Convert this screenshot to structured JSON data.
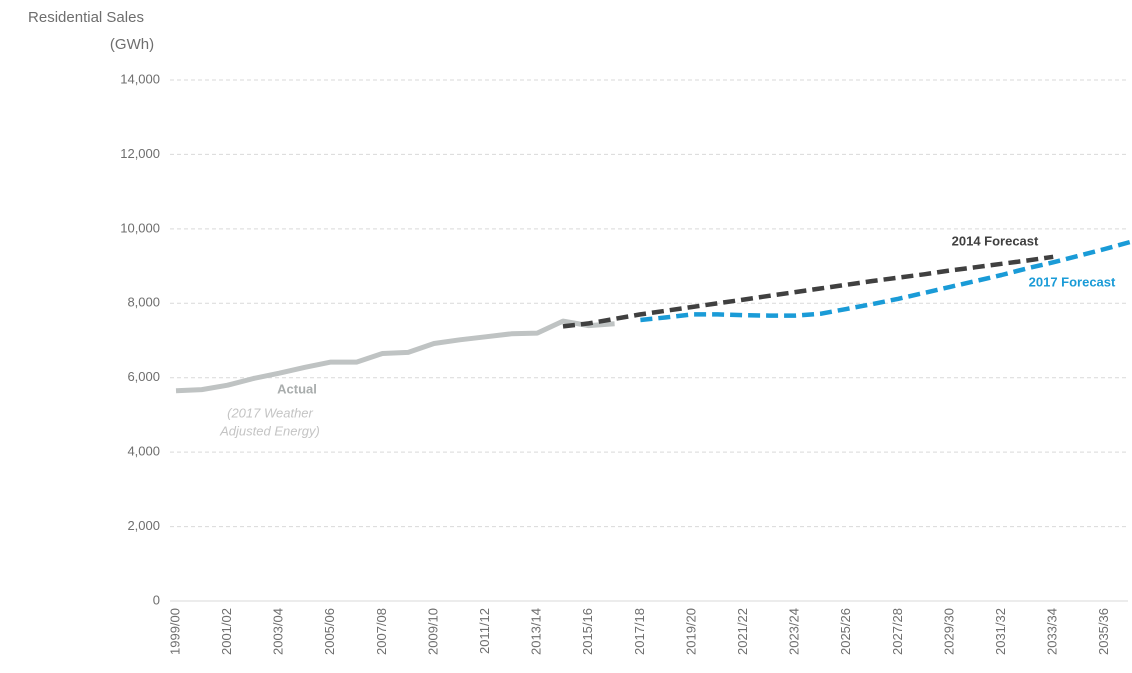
{
  "chart_data": {
    "type": "line",
    "ylabel_lines": [
      "Residential Sales",
      "(GWh)"
    ],
    "categories": [
      "1999/00",
      null,
      "2001/02",
      null,
      "2003/04",
      null,
      "2005/06",
      null,
      "2007/08",
      null,
      "2009/10",
      null,
      "2011/12",
      null,
      "2013/14",
      null,
      "2015/16",
      null,
      "2017/18",
      null,
      "2019/20",
      null,
      "2021/22",
      null,
      "2023/24",
      null,
      "2025/26",
      null,
      "2027/28",
      null,
      "2029/30",
      null,
      "2031/32",
      null,
      "2033/34",
      null,
      "2035/36",
      null
    ],
    "series": [
      {
        "name": "Actual",
        "color": "#bfc3c3",
        "dashed": false,
        "values": [
          5650,
          5680,
          5800,
          5980,
          6120,
          6280,
          6420,
          6420,
          6650,
          6680,
          6920,
          7020,
          7100,
          7180,
          7200,
          7520,
          7400,
          7450,
          null,
          null,
          null,
          null,
          null,
          null,
          null,
          null,
          null,
          null,
          null,
          null,
          null,
          null,
          null,
          null,
          null,
          null,
          null,
          null
        ]
      },
      {
        "name": "2014 Forecast",
        "color": "#404040",
        "dashed": true,
        "values": [
          null,
          null,
          null,
          null,
          null,
          null,
          null,
          null,
          null,
          null,
          null,
          null,
          null,
          null,
          null,
          7380,
          7460,
          7580,
          7700,
          7800,
          7900,
          8000,
          8100,
          8200,
          8300,
          8400,
          8500,
          8600,
          8690,
          8780,
          8880,
          8970,
          9060,
          9150,
          9250,
          null,
          null,
          null
        ]
      },
      {
        "name": "2017 Forecast",
        "color": "#1a9bd7",
        "dashed": true,
        "values": [
          null,
          null,
          null,
          null,
          null,
          null,
          null,
          null,
          null,
          null,
          null,
          null,
          null,
          null,
          null,
          null,
          null,
          null,
          7550,
          7620,
          7700,
          7700,
          7680,
          7670,
          7670,
          7720,
          7850,
          7980,
          8120,
          8280,
          8440,
          8600,
          8760,
          8940,
          9100,
          9280,
          9460,
          9650
        ]
      }
    ],
    "note_lines": [
      "(2017 Weather",
      "Adjusted Energy)"
    ],
    "ylim": [
      0,
      14000
    ],
    "yticks": [
      0,
      {
        "value": 2000,
        "label": "2,000"
      },
      {
        "value": 4000,
        "label": "4,000"
      },
      {
        "value": 6000,
        "label": "6,000"
      },
      {
        "value": 8000,
        "label": "8,000"
      },
      {
        "value": 10000,
        "label": "10,000"
      },
      {
        "value": 12000,
        "label": "12,000"
      },
      {
        "value": 14000,
        "label": "14,000"
      }
    ],
    "grid": true
  }
}
